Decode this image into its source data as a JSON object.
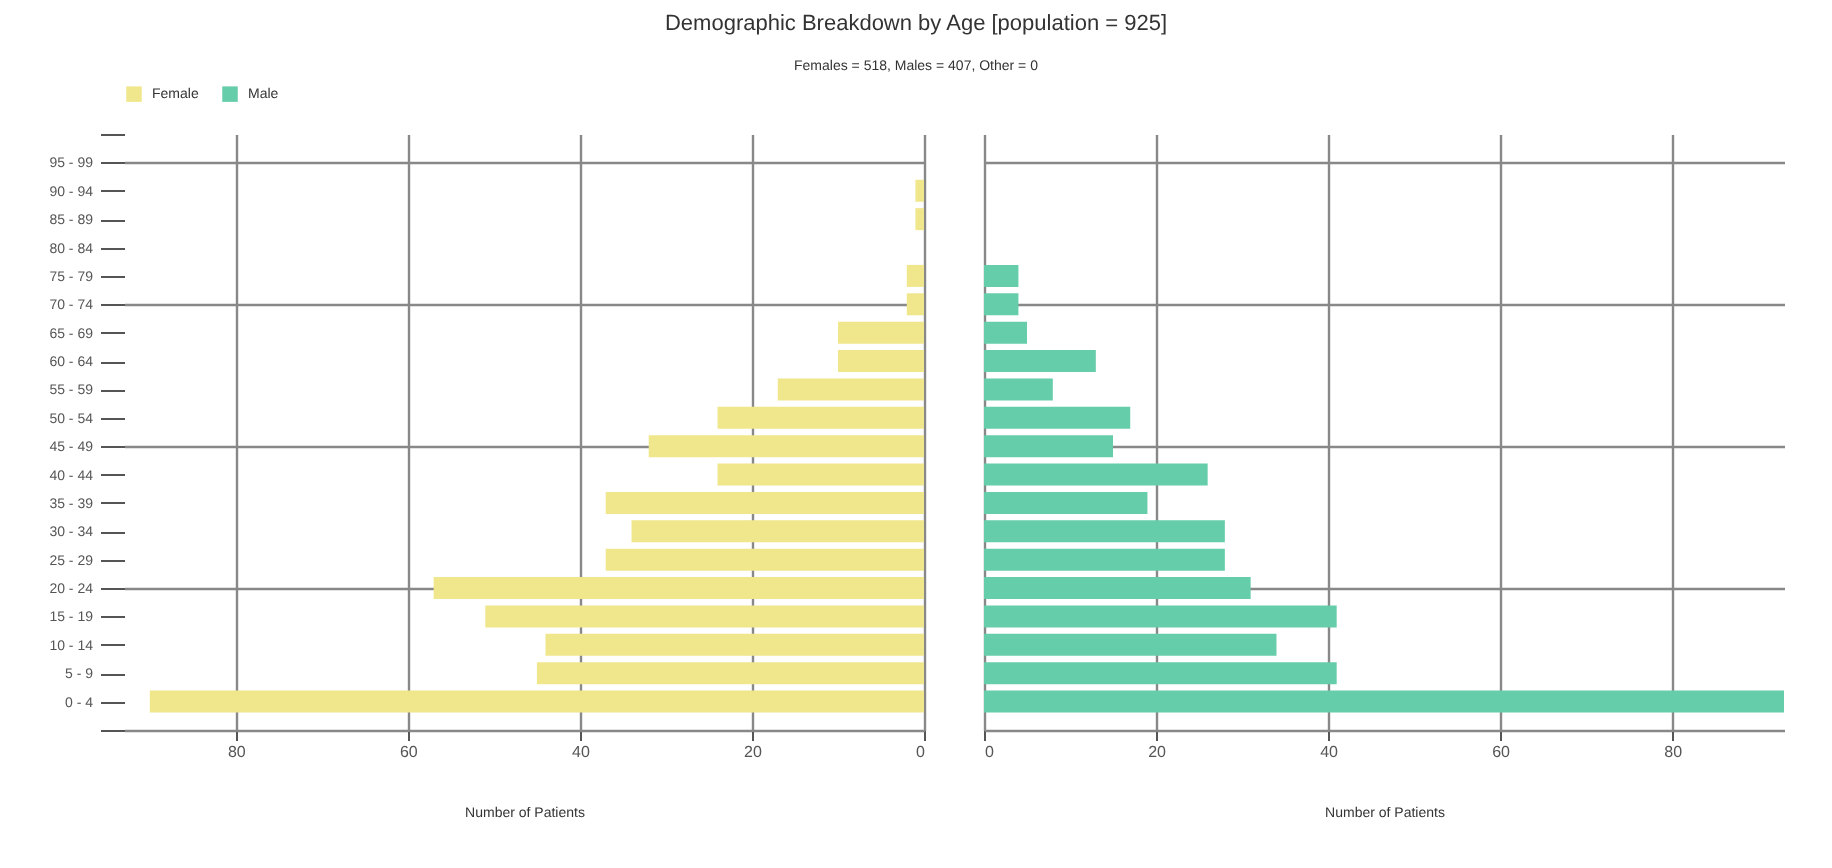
{
  "chart_data": [
    {
      "type": "bar",
      "title": "Demographic Breakdown by Age [population = 925]",
      "subtitle": "Females = 518, Males = 407, Other = 0",
      "orientation": "horizontal",
      "xlabel": "Number of Patients",
      "categories": [
        null,
        "95 - 99",
        "90 - 94",
        "85 - 89",
        "80 - 84",
        "75 - 79",
        "70 - 74",
        "65 - 69",
        "60 - 64",
        "55 - 59",
        "50 - 54",
        "45 - 49",
        "40 - 44",
        "35 - 39",
        "30 - 34",
        "25 - 29",
        "20 - 24",
        "15 - 19",
        "10 - 14",
        "5 - 9",
        "0 - 4",
        null
      ],
      "series": [
        {
          "name": "Female",
          "color": "#f0e68c",
          "values": [
            null,
            null,
            1,
            1,
            0,
            2,
            2,
            10,
            10,
            17,
            24,
            32,
            24,
            37,
            34,
            37,
            57,
            51,
            44,
            45,
            90,
            null
          ]
        }
      ],
      "xlim": [
        93,
        0
      ],
      "xticks": [
        80,
        60,
        40,
        20,
        0
      ],
      "grid": true,
      "legend": "top left"
    },
    {
      "type": "bar",
      "orientation": "horizontal",
      "xlabel": "Number of Patients",
      "categories": [
        null,
        "95 - 99",
        "90 - 94",
        "85 - 89",
        "80 - 84",
        "75 - 79",
        "70 - 74",
        "65 - 69",
        "60 - 64",
        "55 - 59",
        "50 - 54",
        "45 - 49",
        "40 - 44",
        "35 - 39",
        "30 - 34",
        "25 - 29",
        "20 - 24",
        "15 - 19",
        "10 - 14",
        "5 - 9",
        "0 - 4",
        null
      ],
      "series": [
        {
          "name": "Male",
          "color": "#66cdaa",
          "values": [
            null,
            null,
            null,
            null,
            null,
            4,
            4,
            5,
            13,
            8,
            17,
            15,
            26,
            19,
            28,
            28,
            31,
            41,
            34,
            41,
            93,
            null
          ]
        }
      ],
      "xlim": [
        0,
        93
      ],
      "xticks": [
        0,
        20,
        40,
        60,
        80
      ],
      "grid": true,
      "tick_labels": "x"
    }
  ]
}
